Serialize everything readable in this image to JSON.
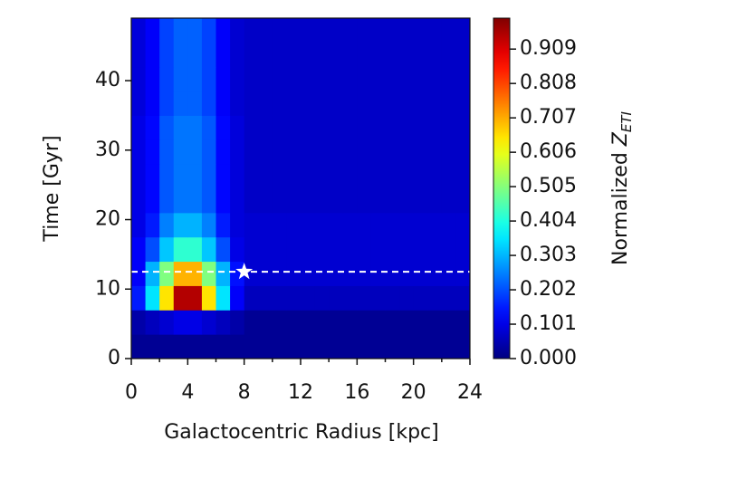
{
  "chart_data": {
    "type": "heatmap",
    "xlabel": "Galactocentric Radius [kpc]",
    "ylabel": "Time [Gyr]",
    "colorbar_label": {
      "text": "Normalized ",
      "symbol": "Z",
      "subscript": "ETI"
    },
    "xlim": [
      0,
      24
    ],
    "ylim": [
      0,
      49
    ],
    "xticks": [
      0,
      4,
      8,
      12,
      16,
      20,
      24
    ],
    "yticks": [
      0,
      10,
      20,
      30,
      40
    ],
    "clim": [
      0,
      1.0
    ],
    "cticks": [
      {
        "value": 0,
        "label": "0.000"
      },
      {
        "value": 0.101,
        "label": "0.101"
      },
      {
        "value": 0.202,
        "label": "0.202"
      },
      {
        "value": 0.303,
        "label": "0.303"
      },
      {
        "value": 0.404,
        "label": "0.404"
      },
      {
        "value": 0.505,
        "label": "0.505"
      },
      {
        "value": 0.606,
        "label": "0.606"
      },
      {
        "value": 0.707,
        "label": "0.707"
      },
      {
        "value": 0.808,
        "label": "0.808"
      },
      {
        "value": 0.909,
        "label": "0.909"
      }
    ],
    "colormap": "jet",
    "x": [
      0.5,
      1.5,
      2.5,
      3.5,
      4.5,
      5.5,
      6.5,
      7.5,
      8.5,
      9.5,
      10.5,
      11.5,
      12.5,
      13.5,
      14.5,
      15.5,
      16.5,
      17.5,
      18.5,
      19.5,
      20.5,
      21.5,
      22.5,
      23.5
    ],
    "y": [
      1.75,
      5.25,
      8.75,
      12.25,
      15.75,
      19.25,
      22.75,
      26.25,
      29.75,
      33.25,
      36.75,
      40.25,
      43.75,
      47.25
    ],
    "z": [
      [
        0.02,
        0.02,
        0.02,
        0.02,
        0.02,
        0.02,
        0.02,
        0.02,
        0.02,
        0.02,
        0.02,
        0.02,
        0.02,
        0.02,
        0.02,
        0.02,
        0.02,
        0.02,
        0.02,
        0.02,
        0.02,
        0.02,
        0.02,
        0.02
      ],
      [
        0.04,
        0.06,
        0.08,
        0.1,
        0.1,
        0.08,
        0.06,
        0.04,
        0.02,
        0.02,
        0.02,
        0.02,
        0.02,
        0.02,
        0.02,
        0.02,
        0.02,
        0.02,
        0.02,
        0.02,
        0.02,
        0.02,
        0.02,
        0.02
      ],
      [
        0.15,
        0.35,
        0.65,
        0.95,
        0.95,
        0.65,
        0.35,
        0.12,
        0.06,
        0.06,
        0.06,
        0.06,
        0.06,
        0.06,
        0.06,
        0.06,
        0.06,
        0.06,
        0.06,
        0.06,
        0.06,
        0.06,
        0.06,
        0.06
      ],
      [
        0.12,
        0.3,
        0.5,
        0.7,
        0.7,
        0.5,
        0.3,
        0.14,
        0.08,
        0.08,
        0.08,
        0.08,
        0.08,
        0.08,
        0.08,
        0.08,
        0.08,
        0.08,
        0.08,
        0.08,
        0.08,
        0.08,
        0.08,
        0.08
      ],
      [
        0.12,
        0.2,
        0.32,
        0.42,
        0.42,
        0.32,
        0.2,
        0.1,
        0.08,
        0.08,
        0.08,
        0.08,
        0.08,
        0.08,
        0.08,
        0.08,
        0.08,
        0.08,
        0.08,
        0.08,
        0.08,
        0.08,
        0.08,
        0.08
      ],
      [
        0.1,
        0.15,
        0.25,
        0.3,
        0.3,
        0.25,
        0.15,
        0.09,
        0.08,
        0.08,
        0.08,
        0.08,
        0.08,
        0.08,
        0.08,
        0.08,
        0.08,
        0.08,
        0.08,
        0.08,
        0.08,
        0.08,
        0.08,
        0.08
      ],
      [
        0.1,
        0.13,
        0.21,
        0.24,
        0.24,
        0.21,
        0.13,
        0.09,
        0.07,
        0.07,
        0.07,
        0.07,
        0.07,
        0.07,
        0.07,
        0.07,
        0.07,
        0.07,
        0.07,
        0.07,
        0.07,
        0.07,
        0.07,
        0.07
      ],
      [
        0.1,
        0.13,
        0.21,
        0.24,
        0.24,
        0.21,
        0.13,
        0.09,
        0.07,
        0.07,
        0.07,
        0.07,
        0.07,
        0.07,
        0.07,
        0.07,
        0.07,
        0.07,
        0.07,
        0.07,
        0.07,
        0.07,
        0.07,
        0.07
      ],
      [
        0.1,
        0.13,
        0.21,
        0.24,
        0.24,
        0.21,
        0.13,
        0.09,
        0.07,
        0.07,
        0.07,
        0.07,
        0.07,
        0.07,
        0.07,
        0.07,
        0.07,
        0.07,
        0.07,
        0.07,
        0.07,
        0.07,
        0.07,
        0.07
      ],
      [
        0.1,
        0.13,
        0.21,
        0.24,
        0.24,
        0.21,
        0.13,
        0.09,
        0.07,
        0.07,
        0.07,
        0.07,
        0.07,
        0.07,
        0.07,
        0.07,
        0.07,
        0.07,
        0.07,
        0.07,
        0.07,
        0.07,
        0.07,
        0.07
      ],
      [
        0.09,
        0.12,
        0.19,
        0.22,
        0.22,
        0.19,
        0.12,
        0.08,
        0.07,
        0.07,
        0.07,
        0.07,
        0.07,
        0.07,
        0.07,
        0.07,
        0.07,
        0.07,
        0.07,
        0.07,
        0.07,
        0.07,
        0.07,
        0.07
      ],
      [
        0.09,
        0.12,
        0.19,
        0.22,
        0.22,
        0.19,
        0.12,
        0.08,
        0.07,
        0.07,
        0.07,
        0.07,
        0.07,
        0.07,
        0.07,
        0.07,
        0.07,
        0.07,
        0.07,
        0.07,
        0.07,
        0.07,
        0.07,
        0.07
      ],
      [
        0.09,
        0.12,
        0.19,
        0.22,
        0.22,
        0.19,
        0.12,
        0.08,
        0.07,
        0.07,
        0.07,
        0.07,
        0.07,
        0.07,
        0.07,
        0.07,
        0.07,
        0.07,
        0.07,
        0.07,
        0.07,
        0.07,
        0.07,
        0.07
      ],
      [
        0.09,
        0.12,
        0.19,
        0.22,
        0.22,
        0.19,
        0.12,
        0.08,
        0.07,
        0.07,
        0.07,
        0.07,
        0.07,
        0.07,
        0.07,
        0.07,
        0.07,
        0.07,
        0.07,
        0.07,
        0.07,
        0.07,
        0.07,
        0.07
      ]
    ],
    "hline": {
      "y": 12.5,
      "color": "#ffffff"
    },
    "star": {
      "x": 8,
      "y": 12.5,
      "color": "#ffffff"
    }
  }
}
